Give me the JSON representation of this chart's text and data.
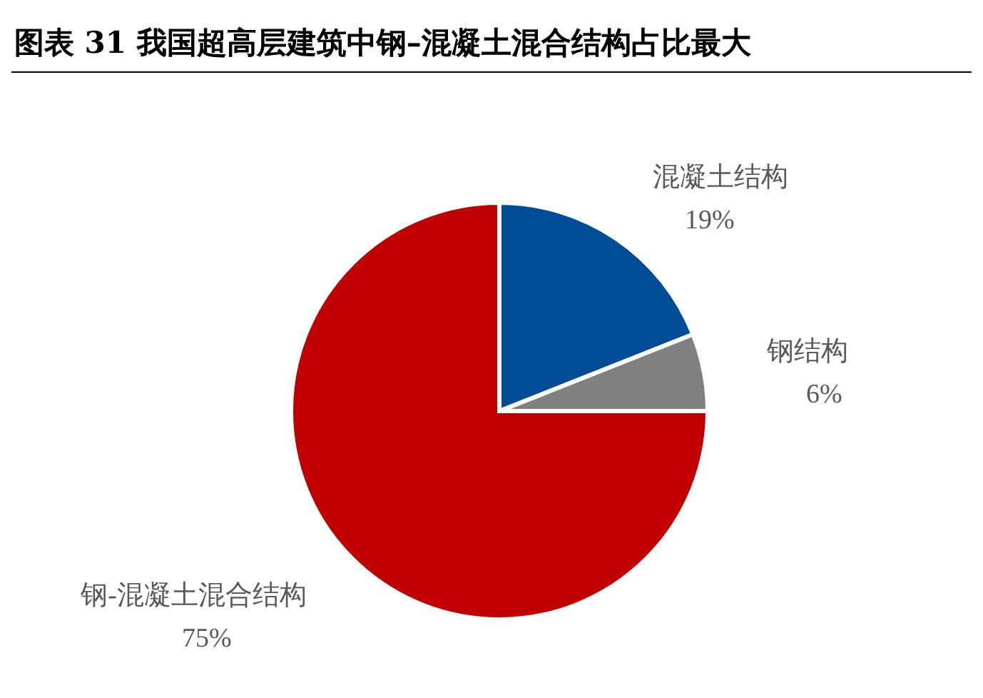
{
  "chart_data": {
    "type": "pie",
    "title": "图表 31  我国超高层建筑中钢–混凝土混合结构占比最大",
    "categories": [
      "混凝土结构",
      "钢结构",
      "钢-混凝土混合结构"
    ],
    "values": [
      19,
      6,
      75
    ],
    "value_labels": [
      "19%",
      "6%",
      "75%"
    ],
    "colors": [
      "#004c97",
      "#808080",
      "#c00000"
    ]
  }
}
